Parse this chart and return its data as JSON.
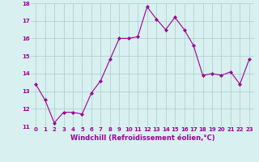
{
  "x": [
    0,
    1,
    2,
    3,
    4,
    5,
    6,
    7,
    8,
    9,
    10,
    11,
    12,
    13,
    14,
    15,
    16,
    17,
    18,
    19,
    20,
    21,
    22,
    23
  ],
  "y": [
    13.4,
    12.5,
    11.2,
    11.8,
    11.8,
    11.7,
    12.9,
    13.6,
    14.8,
    16.0,
    16.0,
    16.1,
    17.8,
    17.1,
    16.5,
    17.2,
    16.5,
    15.6,
    13.9,
    14.0,
    13.9,
    14.1,
    13.4,
    14.8
  ],
  "line_color": "#9b009b",
  "marker": "D",
  "marker_size": 2,
  "bg_color": "#d8f0f0",
  "grid_color": "#aacccc",
  "xlabel": "Windchill (Refroidissement éolien,°C)",
  "xlabel_color": "#9b009b",
  "tick_color": "#9b009b",
  "ylim": [
    11,
    18
  ],
  "xlim": [
    -0.5,
    23.5
  ],
  "yticks": [
    11,
    12,
    13,
    14,
    15,
    16,
    17,
    18
  ],
  "xticks": [
    0,
    1,
    2,
    3,
    4,
    5,
    6,
    7,
    8,
    9,
    10,
    11,
    12,
    13,
    14,
    15,
    16,
    17,
    18,
    19,
    20,
    21,
    22,
    23
  ],
  "tick_fontsize": 5.0,
  "xlabel_fontsize": 6.0
}
